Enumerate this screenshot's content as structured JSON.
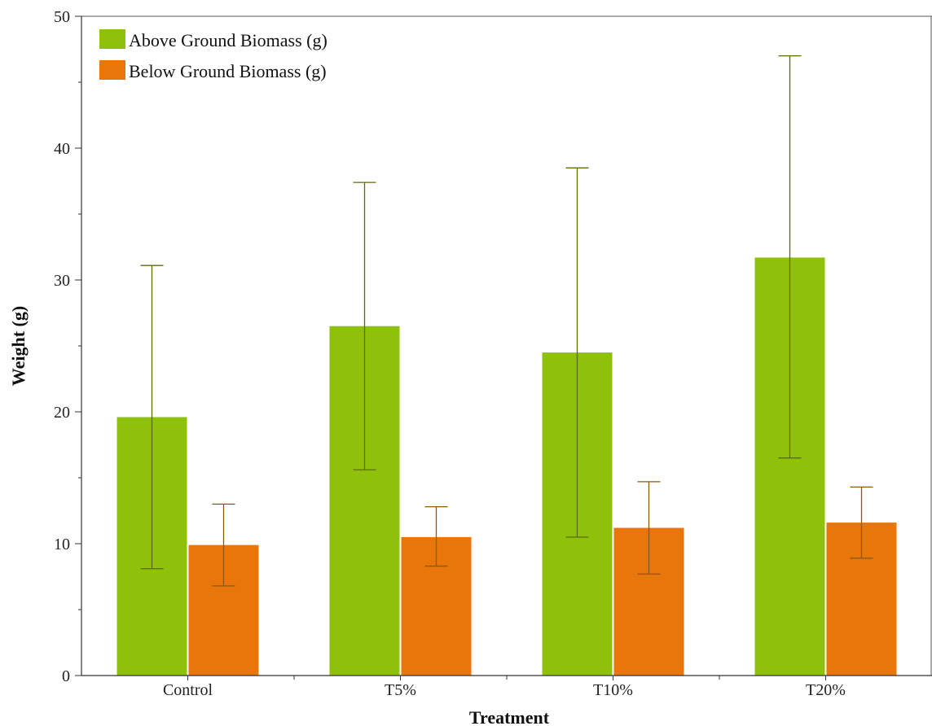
{
  "chart_data": {
    "type": "bar",
    "xlabel": "Treatment",
    "ylabel": "Weight (g)",
    "ylim": [
      0,
      50
    ],
    "yticks": [
      0,
      10,
      20,
      30,
      40,
      50
    ],
    "categories": [
      "Control",
      "T5%",
      "T10%",
      "T20%"
    ],
    "legend_position": "top-left",
    "series": [
      {
        "name": "Above Ground Biomass (g)",
        "color": "#8fc00a",
        "error_color": "#5a6b10",
        "values": [
          19.6,
          26.5,
          24.5,
          31.7
        ],
        "error_low": [
          8.1,
          15.6,
          10.5,
          16.5
        ],
        "error_high": [
          31.1,
          37.4,
          38.5,
          47.0
        ]
      },
      {
        "name": "Below Ground Biomass (g)",
        "color": "#e8760a",
        "error_color": "#8a5a10",
        "values": [
          9.9,
          10.5,
          11.2,
          11.6
        ],
        "error_low": [
          6.8,
          8.3,
          7.7,
          8.9
        ],
        "error_high": [
          13.0,
          12.8,
          14.7,
          14.3
        ]
      }
    ]
  }
}
